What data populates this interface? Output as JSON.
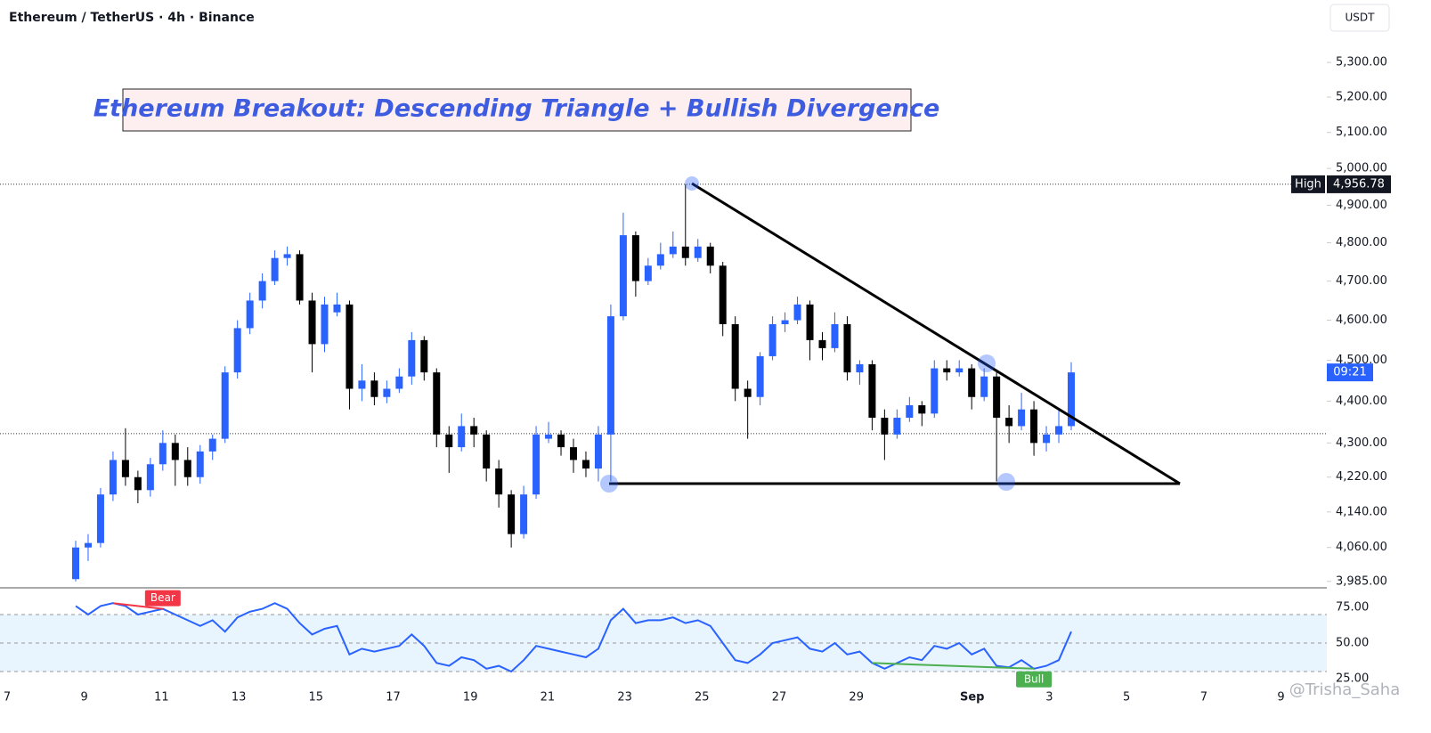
{
  "chart_data": {
    "type": "candlestick",
    "header": "Ethereum / TetherUS · 4h · Binance",
    "currency": "USDT",
    "title": "Ethereum Breakout: Descending Triangle + Bullish Divergence",
    "up_color": "#2962ff",
    "down_color": "#000000",
    "log_scale": true,
    "ylim": [
      3971,
      5485
    ],
    "yticks": [
      {
        "value": 5300,
        "label": "5,300.00"
      },
      {
        "value": 5200,
        "label": "5,200.00"
      },
      {
        "value": 5100,
        "label": "5,100.00"
      },
      {
        "value": 5000,
        "label": "5,000.00"
      },
      {
        "value": 4900,
        "label": "4,900.00"
      },
      {
        "value": 4800,
        "label": "4,800.00"
      },
      {
        "value": 4700,
        "label": "4,700.00"
      },
      {
        "value": 4600,
        "label": "4,600.00"
      },
      {
        "value": 4500,
        "label": "4,500.00"
      },
      {
        "value": 4400,
        "label": "4,400.00"
      },
      {
        "value": 4300,
        "label": "4,300.00"
      },
      {
        "value": 4220,
        "label": "4,220.00"
      },
      {
        "value": 4140,
        "label": "4,140.00"
      },
      {
        "value": 4060,
        "label": "4,060.00"
      },
      {
        "value": 3985,
        "label": "3,985.00"
      }
    ],
    "xticks": [
      "7",
      "9",
      "11",
      "13",
      "15",
      "17",
      "19",
      "21",
      "23",
      "25",
      "27",
      "29",
      "Sep",
      "3",
      "5",
      "7",
      "9"
    ],
    "high": {
      "label": "High",
      "value": 4956.78,
      "value_label": "4,956.78"
    },
    "level": 4322,
    "countdown": "09:21",
    "ohlc": [
      [
        3990,
        4075,
        3985,
        4060
      ],
      [
        4060,
        4090,
        4030,
        4070
      ],
      [
        4070,
        4195,
        4060,
        4180
      ],
      [
        4180,
        4280,
        4165,
        4260
      ],
      [
        4260,
        4335,
        4200,
        4220
      ],
      [
        4220,
        4235,
        4160,
        4190
      ],
      [
        4190,
        4265,
        4175,
        4250
      ],
      [
        4250,
        4330,
        4235,
        4300
      ],
      [
        4300,
        4320,
        4200,
        4260
      ],
      [
        4260,
        4290,
        4200,
        4220
      ],
      [
        4220,
        4295,
        4205,
        4280
      ],
      [
        4280,
        4320,
        4260,
        4310
      ],
      [
        4310,
        4485,
        4300,
        4470
      ],
      [
        4470,
        4600,
        4455,
        4580
      ],
      [
        4580,
        4670,
        4565,
        4650
      ],
      [
        4650,
        4720,
        4630,
        4700
      ],
      [
        4700,
        4780,
        4690,
        4760
      ],
      [
        4760,
        4790,
        4740,
        4770
      ],
      [
        4770,
        4780,
        4640,
        4650
      ],
      [
        4650,
        4670,
        4470,
        4540
      ],
      [
        4540,
        4660,
        4520,
        4640
      ],
      [
        4620,
        4670,
        4610,
        4640
      ],
      [
        4640,
        4650,
        4380,
        4430
      ],
      [
        4430,
        4490,
        4400,
        4450
      ],
      [
        4450,
        4470,
        4390,
        4410
      ],
      [
        4410,
        4450,
        4395,
        4430
      ],
      [
        4430,
        4480,
        4420,
        4460
      ],
      [
        4460,
        4570,
        4440,
        4550
      ],
      [
        4550,
        4560,
        4450,
        4470
      ],
      [
        4470,
        4480,
        4290,
        4320
      ],
      [
        4320,
        4340,
        4230,
        4290
      ],
      [
        4290,
        4370,
        4280,
        4340
      ],
      [
        4340,
        4360,
        4290,
        4320
      ],
      [
        4320,
        4330,
        4210,
        4240
      ],
      [
        4240,
        4260,
        4150,
        4180
      ],
      [
        4180,
        4190,
        4060,
        4090
      ],
      [
        4090,
        4200,
        4080,
        4180
      ],
      [
        4180,
        4340,
        4170,
        4320
      ],
      [
        4310,
        4350,
        4300,
        4320
      ],
      [
        4320,
        4330,
        4270,
        4290
      ],
      [
        4290,
        4310,
        4230,
        4260
      ],
      [
        4260,
        4280,
        4220,
        4240
      ],
      [
        4240,
        4340,
        4210,
        4320
      ],
      [
        4320,
        4640,
        4210,
        4610
      ],
      [
        4610,
        4880,
        4600,
        4820
      ],
      [
        4820,
        4830,
        4660,
        4700
      ],
      [
        4700,
        4760,
        4690,
        4740
      ],
      [
        4740,
        4800,
        4730,
        4770
      ],
      [
        4770,
        4830,
        4760,
        4790
      ],
      [
        4790,
        4956.78,
        4740,
        4760
      ],
      [
        4760,
        4810,
        4750,
        4790
      ],
      [
        4790,
        4800,
        4720,
        4740
      ],
      [
        4740,
        4750,
        4560,
        4590
      ],
      [
        4590,
        4610,
        4400,
        4430
      ],
      [
        4430,
        4450,
        4310,
        4410
      ],
      [
        4410,
        4520,
        4390,
        4510
      ],
      [
        4510,
        4610,
        4500,
        4590
      ],
      [
        4590,
        4620,
        4570,
        4600
      ],
      [
        4600,
        4660,
        4590,
        4640
      ],
      [
        4640,
        4650,
        4500,
        4550
      ],
      [
        4550,
        4570,
        4500,
        4530
      ],
      [
        4530,
        4620,
        4520,
        4590
      ],
      [
        4590,
        4610,
        4450,
        4470
      ],
      [
        4470,
        4500,
        4440,
        4490
      ],
      [
        4490,
        4500,
        4330,
        4360
      ],
      [
        4360,
        4380,
        4260,
        4320
      ],
      [
        4320,
        4380,
        4310,
        4360
      ],
      [
        4360,
        4410,
        4350,
        4390
      ],
      [
        4390,
        4400,
        4340,
        4370
      ],
      [
        4370,
        4500,
        4360,
        4480
      ],
      [
        4480,
        4500,
        4450,
        4470
      ],
      [
        4470,
        4500,
        4460,
        4480
      ],
      [
        4480,
        4490,
        4380,
        4410
      ],
      [
        4410,
        4480,
        4400,
        4460
      ],
      [
        4460,
        4470,
        4210,
        4360
      ],
      [
        4360,
        4390,
        4300,
        4340
      ],
      [
        4340,
        4420,
        4330,
        4380
      ],
      [
        4380,
        4400,
        4270,
        4300
      ],
      [
        4300,
        4340,
        4280,
        4320
      ],
      [
        4320,
        4380,
        4300,
        4340
      ],
      [
        4340,
        4495,
        4330,
        4470
      ]
    ],
    "rsi": {
      "color": "#2962ff",
      "ylim": [
        20,
        88.75
      ],
      "band": [
        30,
        70
      ],
      "yticks": [
        {
          "value": 75,
          "label": "75.00"
        },
        {
          "value": 50,
          "label": "50.00"
        },
        {
          "value": 25,
          "label": "25.00"
        }
      ],
      "values": [
        76,
        70,
        76,
        78,
        76,
        70,
        72,
        74,
        70,
        66,
        62,
        66,
        58,
        68,
        72,
        74,
        78,
        74,
        64,
        56,
        60,
        62,
        42,
        46,
        44,
        46,
        48,
        56,
        48,
        36,
        34,
        40,
        38,
        32,
        34,
        30,
        38,
        48,
        46,
        44,
        42,
        40,
        46,
        66,
        74,
        64,
        66,
        66,
        68,
        64,
        66,
        62,
        50,
        38,
        36,
        42,
        50,
        52,
        54,
        46,
        44,
        50,
        42,
        44,
        36,
        32,
        36,
        40,
        38,
        48,
        46,
        50,
        42,
        46,
        34,
        33,
        38,
        32,
        34,
        38,
        58
      ],
      "divergences": [
        {
          "label": "Bear",
          "color": "#f23645"
        },
        {
          "label": "Bull",
          "color": "#4caf50"
        }
      ]
    },
    "watermark": "@Trisha_Saha"
  }
}
